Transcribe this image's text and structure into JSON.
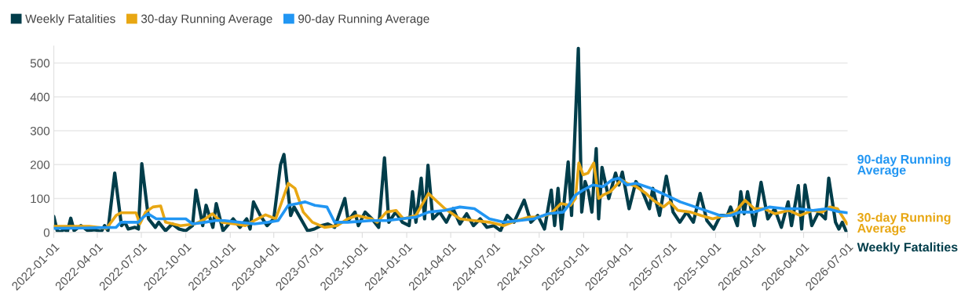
{
  "chart_data": {
    "type": "line",
    "x": [
      "2022-01-01",
      "2022-01-08",
      "2022-01-15",
      "2022-01-22",
      "2022-01-29",
      "2022-02-05",
      "2022-02-12",
      "2022-02-26",
      "2022-03-12",
      "2022-03-26",
      "2022-04-09",
      "2022-04-16",
      "2022-04-23",
      "2022-05-07",
      "2022-05-21",
      "2022-05-28",
      "2022-06-04",
      "2022-06-18",
      "2022-06-25",
      "2022-07-02",
      "2022-07-16",
      "2022-07-30",
      "2022-08-06",
      "2022-08-20",
      "2022-09-03",
      "2022-09-17",
      "2022-10-01",
      "2022-10-15",
      "2022-10-22",
      "2022-11-05",
      "2022-11-12",
      "2022-11-26",
      "2022-12-03",
      "2022-12-17",
      "2023-01-07",
      "2023-01-21",
      "2023-02-04",
      "2023-02-11",
      "2023-02-18",
      "2023-03-04",
      "2023-03-18",
      "2023-04-01",
      "2023-04-15",
      "2023-04-22",
      "2023-05-06",
      "2023-05-13",
      "2023-05-27",
      "2023-06-10",
      "2023-06-24",
      "2023-07-08",
      "2023-07-22",
      "2023-08-05",
      "2023-08-26",
      "2023-09-02",
      "2023-09-16",
      "2023-09-23",
      "2023-10-07",
      "2023-10-21",
      "2023-11-04",
      "2023-11-16",
      "2023-11-25",
      "2023-12-09",
      "2023-12-23",
      "2024-01-06",
      "2024-01-13",
      "2024-01-20",
      "2024-01-31",
      "2024-02-07",
      "2024-02-14",
      "2024-02-24",
      "2024-03-09",
      "2024-03-23",
      "2024-04-06",
      "2024-04-20",
      "2024-05-04",
      "2024-05-18",
      "2024-06-01",
      "2024-06-15",
      "2024-06-29",
      "2024-07-13",
      "2024-07-27",
      "2024-08-10",
      "2024-08-31",
      "2024-09-14",
      "2024-09-28",
      "2024-10-12",
      "2024-10-26",
      "2024-11-02",
      "2024-11-09",
      "2024-11-16",
      "2024-11-30",
      "2024-12-07",
      "2024-12-21",
      "2024-12-28",
      "2025-01-04",
      "2025-01-11",
      "2025-01-18",
      "2025-01-27",
      "2025-02-01",
      "2025-02-08",
      "2025-02-22",
      "2025-03-08",
      "2025-03-15",
      "2025-03-22",
      "2025-04-05",
      "2025-04-19",
      "2025-05-03",
      "2025-05-17",
      "2025-05-24",
      "2025-06-07",
      "2025-06-21",
      "2025-07-05",
      "2025-07-19",
      "2025-08-02",
      "2025-08-16",
      "2025-08-30",
      "2025-09-13",
      "2025-09-27",
      "2025-10-11",
      "2025-10-25",
      "2025-11-01",
      "2025-11-15",
      "2025-11-22",
      "2025-11-29",
      "2025-12-06",
      "2025-12-20",
      "2026-01-03",
      "2026-01-17",
      "2026-01-31",
      "2026-02-14",
      "2026-02-28",
      "2026-03-07",
      "2026-03-21",
      "2026-03-28",
      "2026-04-04",
      "2026-04-18",
      "2026-05-02",
      "2026-05-16",
      "2026-05-23",
      "2026-06-06",
      "2026-06-13",
      "2026-06-20",
      "2026-06-29"
    ],
    "series": [
      {
        "name": "Weekly Fatalities",
        "color": "#003d4a",
        "values": [
          47,
          5,
          0,
          10,
          2,
          42,
          5,
          20,
          5,
          8,
          2,
          20,
          5,
          175,
          20,
          30,
          10,
          15,
          10,
          203,
          40,
          15,
          30,
          5,
          25,
          10,
          5,
          20,
          125,
          20,
          80,
          15,
          85,
          5,
          40,
          15,
          40,
          10,
          90,
          50,
          20,
          40,
          200,
          230,
          50,
          75,
          40,
          5,
          10,
          20,
          25,
          15,
          100,
          35,
          60,
          20,
          60,
          40,
          15,
          220,
          30,
          60,
          30,
          20,
          120,
          30,
          160,
          40,
          198,
          40,
          60,
          30,
          70,
          25,
          55,
          20,
          40,
          15,
          20,
          5,
          50,
          30,
          95,
          30,
          50,
          10,
          125,
          20,
          130,
          10,
          208,
          50,
          543,
          60,
          150,
          120,
          60,
          247,
          40,
          192,
          100,
          175,
          140,
          178,
          70,
          150,
          120,
          70,
          130,
          50,
          166,
          60,
          30,
          60,
          30,
          115,
          35,
          10,
          50,
          50,
          75,
          20,
          120,
          55,
          120,
          20,
          148,
          40,
          70,
          15,
          90,
          20,
          138,
          10,
          140,
          20,
          60,
          40,
          160,
          30,
          10,
          30,
          0
        ]
      },
      {
        "name": "30-day Running Average",
        "color": "#e8a713",
        "x": [
          "2022-01-01",
          "2022-03-15",
          "2022-04-20",
          "2022-05-10",
          "2022-05-20",
          "2022-06-20",
          "2022-06-28",
          "2022-07-10",
          "2022-07-25",
          "2022-08-10",
          "2022-08-20",
          "2022-09-20",
          "2022-10-20",
          "2022-11-10",
          "2022-11-25",
          "2022-12-15",
          "2023-01-10",
          "2023-02-01",
          "2023-02-20",
          "2023-03-15",
          "2023-04-05",
          "2023-04-20",
          "2023-05-01",
          "2023-05-15",
          "2023-06-01",
          "2023-06-20",
          "2023-07-15",
          "2023-08-10",
          "2023-09-01",
          "2023-09-20",
          "2023-10-20",
          "2023-11-01",
          "2023-11-20",
          "2023-12-10",
          "2023-12-25",
          "2024-01-20",
          "2024-02-01",
          "2024-02-15",
          "2024-03-01",
          "2024-03-20",
          "2024-04-20",
          "2024-05-20",
          "2024-06-20",
          "2024-07-20",
          "2024-08-15",
          "2024-09-10",
          "2024-10-01",
          "2024-10-25",
          "2024-11-15",
          "2024-12-05",
          "2024-12-15",
          "2024-12-22",
          "2024-12-31",
          "2025-01-10",
          "2025-01-22",
          "2025-02-01",
          "2025-02-10",
          "2025-02-25",
          "2025-03-10",
          "2025-03-20",
          "2025-04-01",
          "2025-04-20",
          "2025-05-10",
          "2025-05-25",
          "2025-06-15",
          "2025-06-28",
          "2025-07-15",
          "2025-08-10",
          "2025-09-01",
          "2025-09-25",
          "2025-10-20",
          "2025-11-10",
          "2025-12-01",
          "2025-12-20",
          "2026-01-10",
          "2026-02-01",
          "2026-03-01",
          "2026-03-25",
          "2026-04-20",
          "2026-05-10",
          "2026-05-25",
          "2026-06-10",
          "2026-06-30"
        ],
        "values": [
          18,
          18,
          12,
          50,
          58,
          58,
          25,
          60,
          75,
          78,
          30,
          20,
          25,
          40,
          55,
          30,
          25,
          20,
          35,
          52,
          40,
          100,
          145,
          130,
          60,
          30,
          15,
          20,
          40,
          50,
          40,
          30,
          60,
          65,
          40,
          50,
          80,
          115,
          95,
          70,
          40,
          35,
          30,
          20,
          35,
          45,
          45,
          55,
          85,
          80,
          100,
          205,
          170,
          175,
          205,
          100,
          110,
          120,
          140,
          155,
          145,
          135,
          115,
          95,
          75,
          90,
          65,
          60,
          50,
          40,
          50,
          60,
          95,
          70,
          70,
          55,
          65,
          50,
          65,
          60,
          75,
          70,
          25
        ]
      },
      {
        "name": "90-day Running Average",
        "color": "#2196f3",
        "x": [
          "2022-01-01",
          "2022-03-01",
          "2022-05-10",
          "2022-05-20",
          "2022-06-25",
          "2022-07-05",
          "2022-07-15",
          "2022-08-01",
          "2022-10-01",
          "2022-10-15",
          "2022-11-10",
          "2022-12-01",
          "2022-12-20",
          "2023-01-20",
          "2023-02-20",
          "2023-03-20",
          "2023-04-10",
          "2023-05-01",
          "2023-05-20",
          "2023-06-05",
          "2023-06-25",
          "2023-07-20",
          "2023-08-05",
          "2023-09-01",
          "2023-10-20",
          "2023-11-20",
          "2023-12-20",
          "2024-01-20",
          "2024-02-15",
          "2024-03-20",
          "2024-04-20",
          "2024-05-20",
          "2024-06-20",
          "2024-07-20",
          "2024-08-20",
          "2024-09-20",
          "2024-10-20",
          "2024-11-20",
          "2024-12-01",
          "2024-12-15",
          "2024-12-31",
          "2025-01-20",
          "2025-02-10",
          "2025-03-01",
          "2025-03-15",
          "2025-04-01",
          "2025-04-20",
          "2025-05-20",
          "2025-06-20",
          "2025-07-20",
          "2025-08-20",
          "2025-09-20",
          "2025-10-10",
          "2025-11-01",
          "2025-11-20",
          "2025-12-20",
          "2026-01-20",
          "2026-02-20",
          "2026-03-20",
          "2026-04-20",
          "2026-05-20",
          "2026-06-10",
          "2026-06-30"
        ],
        "values": [
          12,
          13,
          15,
          30,
          30,
          45,
          55,
          40,
          40,
          25,
          30,
          35,
          35,
          30,
          25,
          30,
          35,
          80,
          85,
          90,
          80,
          75,
          30,
          30,
          35,
          35,
          40,
          45,
          60,
          65,
          75,
          70,
          40,
          30,
          35,
          40,
          55,
          60,
          80,
          110,
          125,
          140,
          135,
          155,
          160,
          140,
          145,
          130,
          110,
          90,
          75,
          60,
          50,
          50,
          60,
          60,
          75,
          70,
          70,
          65,
          70,
          62,
          58
        ]
      }
    ],
    "xlim": [
      "2022-01-01",
      "2026-07-01"
    ],
    "xticks": [
      "2022-01-01",
      "2022-04-01",
      "2022-07-01",
      "2022-10-01",
      "2023-01-01",
      "2023-04-01",
      "2023-07-01",
      "2023-10-01",
      "2024-01-01",
      "2024-04-01",
      "2024-07-01",
      "2024-10-01",
      "2025-01-01",
      "2025-04-01",
      "2025-07-01",
      "2025-10-01",
      "2026-01-01",
      "2026-04-01",
      "2026-07-01"
    ],
    "ylim": [
      0,
      550
    ],
    "yticks": [
      0,
      100,
      200,
      300,
      400,
      500
    ],
    "grid": "y",
    "legend": "top left",
    "marker": "none",
    "line_style": "solid"
  }
}
